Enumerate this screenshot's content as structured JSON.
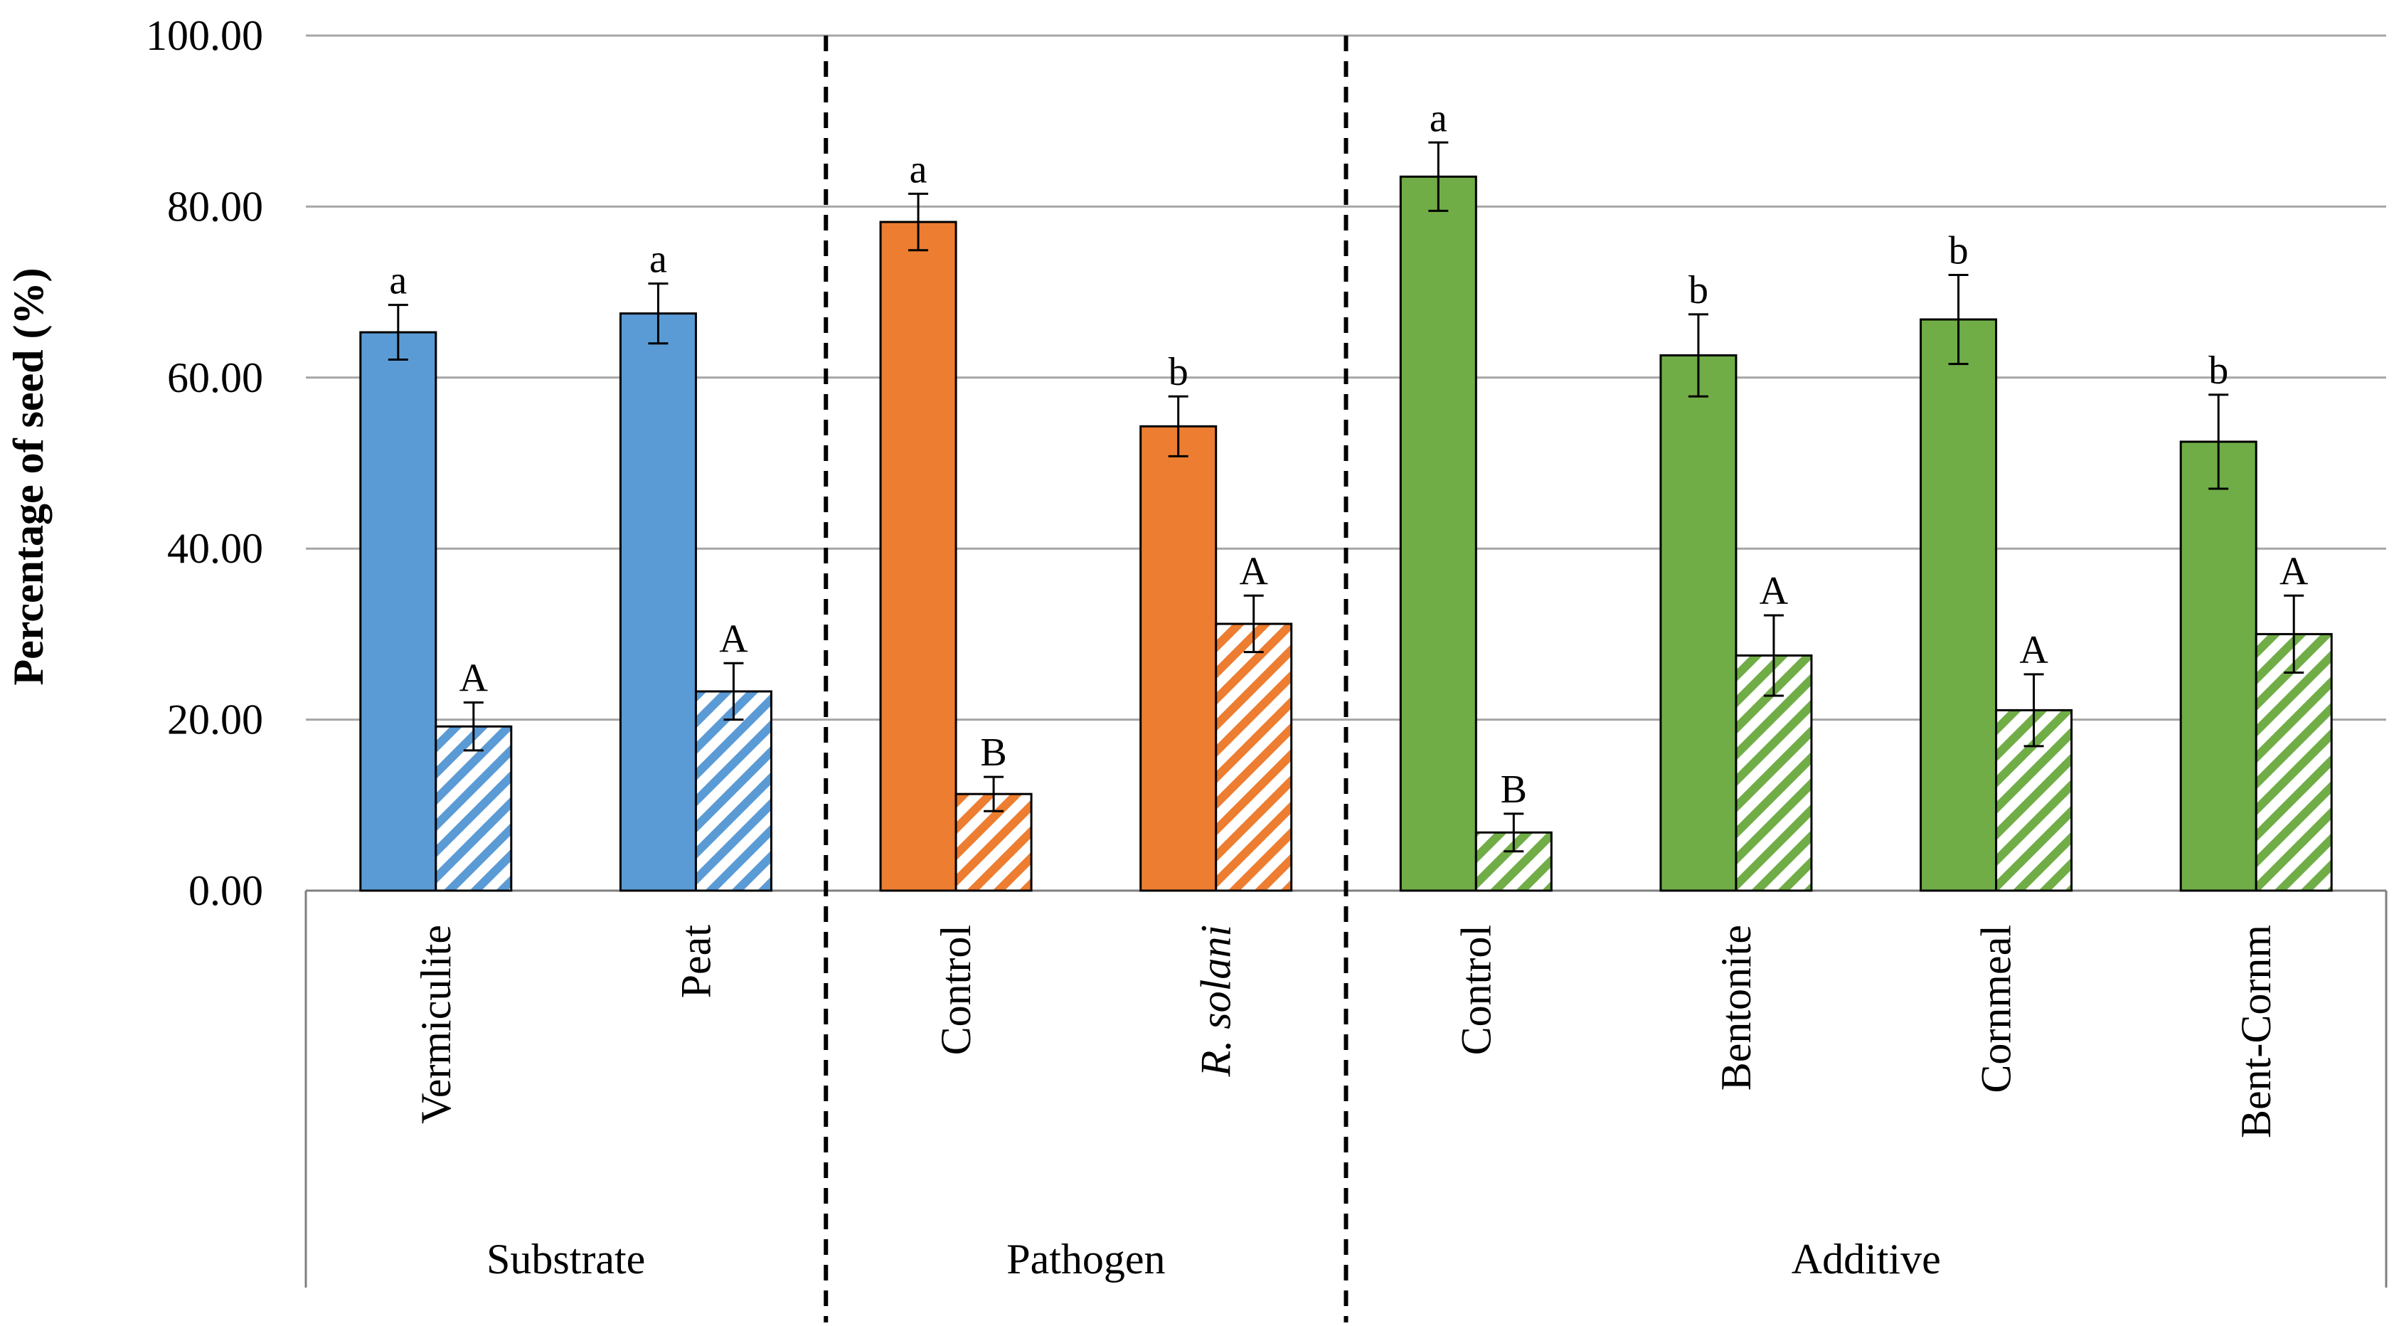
{
  "chart_data": {
    "type": "bar",
    "title": "",
    "xlabel": "",
    "ylabel": "Percentage of seed (%)",
    "ylim": [
      0,
      100
    ],
    "y_ticks": [
      "0.00",
      "20.00",
      "40.00",
      "60.00",
      "80.00",
      "100.00"
    ],
    "grid": true,
    "groups": [
      {
        "name": "Substrate",
        "color": "#5B9BD5",
        "categories": [
          {
            "label": "Vermiculite",
            "italic": false,
            "solid": 65.3,
            "solid_err": 3.2,
            "solid_sig": "a",
            "hatched": 19.2,
            "hatched_err": 2.8,
            "hatched_sig": "A"
          },
          {
            "label": "Peat",
            "italic": false,
            "solid": 67.5,
            "solid_err": 3.5,
            "solid_sig": "a",
            "hatched": 23.3,
            "hatched_err": 3.3,
            "hatched_sig": "A"
          }
        ]
      },
      {
        "name": "Pathogen",
        "color": "#ED7D31",
        "categories": [
          {
            "label": "Control",
            "italic": false,
            "solid": 78.2,
            "solid_err": 3.3,
            "solid_sig": "a",
            "hatched": 11.3,
            "hatched_err": 2.0,
            "hatched_sig": "B"
          },
          {
            "label": "R. solani",
            "italic": true,
            "solid": 54.3,
            "solid_err": 3.5,
            "solid_sig": "b",
            "hatched": 31.2,
            "hatched_err": 3.3,
            "hatched_sig": "A"
          }
        ]
      },
      {
        "name": "Additive",
        "color": "#70AD47",
        "categories": [
          {
            "label": "Control",
            "italic": false,
            "solid": 83.5,
            "solid_err": 4.0,
            "solid_sig": "a",
            "hatched": 6.8,
            "hatched_err": 2.2,
            "hatched_sig": "B"
          },
          {
            "label": "Bentonite",
            "italic": false,
            "solid": 62.6,
            "solid_err": 4.8,
            "solid_sig": "b",
            "hatched": 27.5,
            "hatched_err": 4.7,
            "hatched_sig": "A"
          },
          {
            "label": "Cornmeal",
            "italic": false,
            "solid": 66.8,
            "solid_err": 5.2,
            "solid_sig": "b",
            "hatched": 21.1,
            "hatched_err": 4.2,
            "hatched_sig": "A"
          },
          {
            "label": "Bent-Cornm",
            "italic": false,
            "solid": 52.5,
            "solid_err": 5.5,
            "solid_sig": "b",
            "hatched": 30.0,
            "hatched_err": 4.5,
            "hatched_sig": "A"
          }
        ]
      }
    ]
  }
}
